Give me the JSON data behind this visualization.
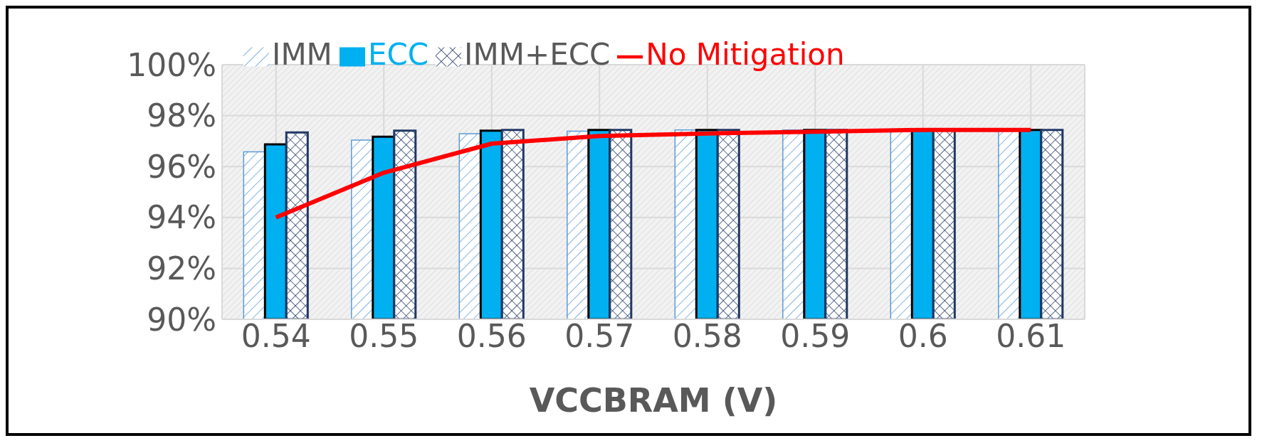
{
  "chart_data": {
    "type": "bar",
    "xlabel": "VCCBRAM (V)",
    "categories": [
      "0.54",
      "0.55",
      "0.56",
      "0.57",
      "0.58",
      "0.59",
      "0.6",
      "0.61"
    ],
    "series": [
      {
        "name": "IMM",
        "color": "#5b9bd5",
        "values": [
          96.58,
          97.04,
          97.29,
          97.39,
          97.44,
          97.44,
          97.44,
          97.44
        ]
      },
      {
        "name": "ECC",
        "color": "#00b0f0",
        "values": [
          96.87,
          97.17,
          97.41,
          97.44,
          97.44,
          97.44,
          97.44,
          97.44
        ]
      },
      {
        "name": "IMM+ECC",
        "color": "#203864",
        "values": [
          97.34,
          97.41,
          97.44,
          97.44,
          97.44,
          97.44,
          97.44,
          97.44
        ]
      },
      {
        "name": "No Mitigation",
        "type": "line",
        "color": "#ff0000",
        "values": [
          94.0,
          95.76,
          96.9,
          97.2,
          97.3,
          97.37,
          97.44,
          97.44
        ]
      }
    ],
    "ylim": [
      90,
      100
    ],
    "yticks": [
      {
        "value": 90,
        "label": "90%"
      },
      {
        "value": 92,
        "label": "92%"
      },
      {
        "value": 94,
        "label": "94%"
      },
      {
        "value": 96,
        "label": "96%"
      },
      {
        "value": 98,
        "label": "98%"
      },
      {
        "value": 100,
        "label": "100%"
      }
    ],
    "grid": true,
    "legend": "top",
    "marker": "none",
    "line_style": "solid"
  }
}
